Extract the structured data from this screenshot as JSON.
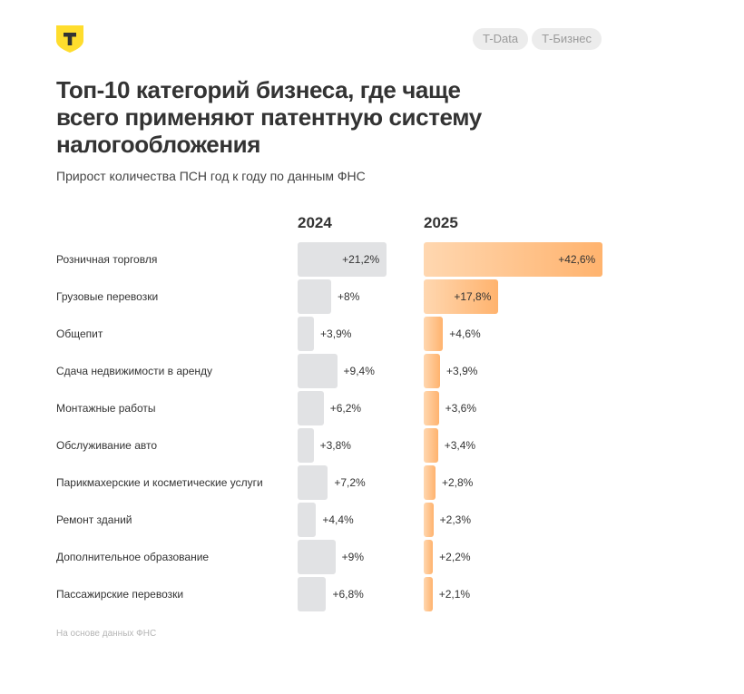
{
  "header": {
    "logo": "Т",
    "pills": [
      "T-Data",
      "Т-Бизнес"
    ]
  },
  "title": "Топ-10 категорий бизнеса, где чаще всего применяют патентную систему налогообложения",
  "subtitle": "Прирост количества ПСН год к году по данным ФНС",
  "source": "На основе данных ФНС",
  "colors": {
    "bar_2024": "#e1e2e4",
    "bar_2025_start": "#ffd7b0",
    "bar_2025_end": "#ffb36e",
    "logo": "#ffdd2d"
  },
  "chart_data": {
    "type": "bar",
    "orientation": "horizontal",
    "categories": [
      "Розничная торговля",
      "Грузовые перевозки",
      "Общепит",
      "Сдача недвижимости в аренду",
      "Монтажные работы",
      "Обслуживание авто",
      "Парикмахерские и косметические услуги",
      "Ремонт зданий",
      "Дополнительное образование",
      "Пассажирские перевозки"
    ],
    "series": [
      {
        "name": "2024",
        "values": [
          21.2,
          8,
          3.9,
          9.4,
          6.2,
          3.8,
          7.2,
          4.4,
          9,
          6.8
        ],
        "labels": [
          "+21,2%",
          "+8%",
          "+3,9%",
          "+9,4%",
          "+6,2%",
          "+3,8%",
          "+7,2%",
          "+4,4%",
          "+9%",
          "+6,8%"
        ]
      },
      {
        "name": "2025",
        "values": [
          42.6,
          17.8,
          4.6,
          3.9,
          3.6,
          3.4,
          2.8,
          2.3,
          2.2,
          2.1
        ],
        "labels": [
          "+42,6%",
          "+17,8%",
          "+4,6%",
          "+3,9%",
          "+3,6%",
          "+3,4%",
          "+2,8%",
          "+2,3%",
          "+2,2%",
          "+2,1%"
        ]
      }
    ],
    "unit": "%"
  }
}
